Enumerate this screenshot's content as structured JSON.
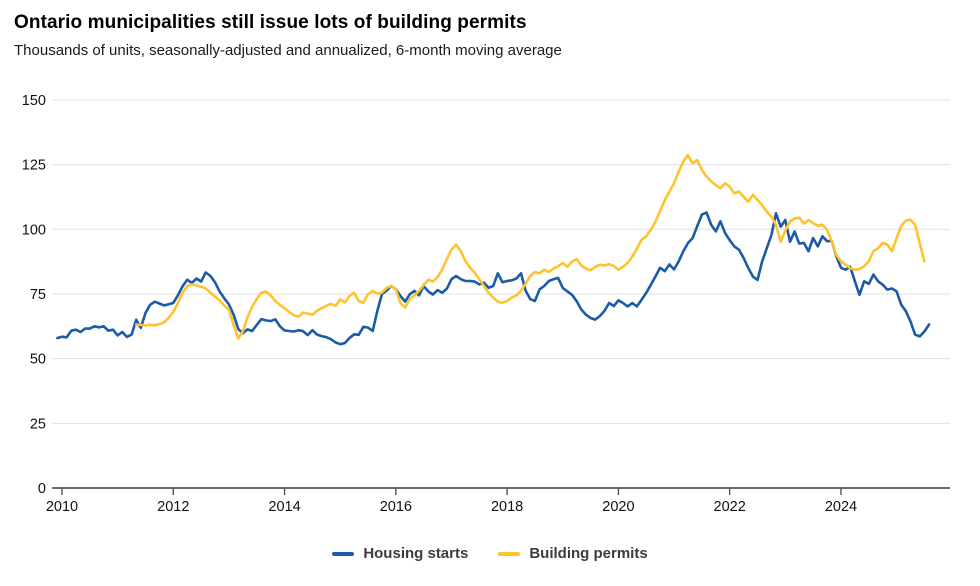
{
  "header": {
    "title": "Ontario municipalities still issue lots of building permits",
    "subtitle": "Thousands of units, seasonally-adjusted and annualized, 6-month moving average"
  },
  "legend": [
    {
      "label": "Housing starts",
      "color": "#1c5ba6"
    },
    {
      "label": "Building permits",
      "color": "#fdc42d"
    }
  ],
  "colors": {
    "housing_starts": "#1c5ba6",
    "building_permits": "#fdc42d",
    "gridline": "#e0e0e0",
    "axis": "#6b6b6b",
    "text": "#111111"
  },
  "chart_data": {
    "type": "line",
    "title": "Ontario municipalities still issue lots of building permits",
    "subtitle": "Thousands of units, seasonally-adjusted and annualized, 6-month moving average",
    "xlabel": "",
    "ylabel": "Thousands of units",
    "ylim": [
      0,
      150
    ],
    "yticks": [
      0,
      25,
      50,
      75,
      100,
      125,
      150
    ],
    "xticks": [
      2010,
      2012,
      2014,
      2016,
      2018,
      2020,
      2022,
      2024
    ],
    "x_range": [
      2009.9,
      2025.75
    ],
    "grid": "horizontal",
    "legend_position": "bottom",
    "x_unit": "year, monthly points (value index i = start_year + i/12)",
    "series": [
      {
        "name": "Housing starts",
        "color": "#1c5ba6",
        "start_year": 2009.9167,
        "points_per_year": 12,
        "values": [
          58.0,
          58.5,
          58.2,
          60.8,
          61.2,
          60.3,
          61.6,
          61.6,
          62.5,
          62.1,
          62.5,
          60.8,
          61.2,
          59.0,
          60.3,
          58.4,
          59.3,
          65.0,
          61.9,
          67.7,
          70.8,
          72.0,
          71.3,
          70.6,
          71.0,
          71.5,
          74.5,
          78.0,
          80.5,
          79.3,
          81.0,
          79.8,
          83.3,
          82.0,
          79.5,
          76.0,
          73.3,
          71.0,
          67.0,
          61.5,
          59.8,
          61.3,
          60.7,
          63.0,
          65.3,
          64.8,
          64.5,
          65.2,
          62.5,
          60.9,
          60.7,
          60.5,
          61.0,
          60.6,
          59.1,
          61.0,
          59.3,
          58.7,
          58.3,
          57.5,
          56.3,
          55.6,
          56.0,
          58.0,
          59.4,
          59.2,
          62.3,
          62.0,
          60.7,
          68.4,
          74.9,
          76.3,
          78.1,
          76.8,
          74.2,
          72.0,
          74.9,
          76.2,
          74.5,
          78.0,
          76.0,
          74.8,
          76.5,
          75.5,
          77.0,
          80.7,
          82.0,
          80.7,
          80.0,
          80.0,
          79.8,
          78.7,
          79.4,
          77.4,
          78.1,
          83.0,
          79.5,
          80.0,
          80.3,
          81.0,
          83.0,
          76.2,
          73.0,
          72.3,
          76.8,
          78.1,
          80.0,
          80.7,
          81.2,
          77.3,
          76.0,
          74.7,
          72.2,
          69.0,
          67.0,
          65.7,
          65.1,
          66.5,
          68.5,
          71.5,
          70.3,
          72.5,
          71.5,
          70.2,
          71.5,
          70.2,
          72.8,
          75.4,
          78.6,
          81.8,
          85.1,
          83.8,
          86.4,
          84.5,
          87.6,
          91.5,
          94.7,
          96.6,
          101.2,
          105.7,
          106.5,
          101.8,
          99.2,
          103.1,
          98.6,
          95.8,
          93.4,
          92.1,
          88.9,
          85.1,
          81.7,
          80.4,
          87.5,
          92.7,
          97.8,
          106.2,
          101.0,
          103.6,
          95.2,
          99.1,
          94.5,
          94.7,
          91.5,
          96.6,
          93.4,
          97.3,
          95.4,
          95.5,
          89.6,
          85.1,
          84.4,
          85.5,
          79.9,
          74.7,
          79.9,
          78.9,
          82.5,
          79.9,
          78.6,
          76.7,
          77.1,
          76.0,
          70.9,
          68.3,
          64.4,
          59.3,
          58.6,
          60.5,
          63.2
        ]
      },
      {
        "name": "Building permits",
        "color": "#fdc42d",
        "start_year": 2011.3333,
        "points_per_year": 12,
        "values": [
          63.2,
          63.0,
          62.8,
          63.1,
          62.9,
          63.3,
          64.0,
          65.8,
          68.0,
          71.5,
          75.5,
          78.0,
          78.7,
          78.3,
          77.8,
          77.2,
          75.5,
          74.0,
          72.5,
          70.5,
          69.0,
          63.0,
          57.8,
          60.5,
          66.0,
          70.0,
          73.0,
          75.5,
          75.9,
          74.5,
          72.3,
          70.8,
          69.5,
          68.0,
          66.8,
          66.2,
          67.8,
          67.4,
          67.0,
          68.5,
          69.5,
          70.4,
          71.2,
          70.4,
          72.9,
          71.7,
          74.2,
          75.5,
          72.3,
          71.6,
          74.9,
          76.2,
          75.1,
          75.5,
          77.4,
          78.1,
          76.8,
          71.5,
          69.8,
          72.9,
          74.5,
          76.2,
          78.5,
          80.5,
          79.8,
          81.5,
          84.5,
          88.5,
          92.1,
          94.1,
          91.5,
          87.8,
          85.2,
          83.2,
          80.7,
          78.1,
          75.5,
          73.6,
          72.0,
          71.6,
          72.3,
          73.6,
          74.5,
          76.2,
          79.0,
          82.0,
          83.5,
          83.0,
          84.4,
          83.5,
          84.8,
          85.7,
          87.0,
          85.5,
          87.5,
          88.5,
          86.0,
          84.8,
          84.2,
          85.5,
          86.3,
          86.0,
          86.5,
          85.8,
          84.4,
          85.5,
          87.0,
          89.5,
          92.5,
          96.0,
          97.3,
          99.8,
          103.0,
          107.0,
          111.3,
          114.5,
          117.8,
          122.3,
          126.2,
          128.7,
          125.5,
          126.8,
          122.9,
          120.4,
          118.6,
          117.1,
          115.8,
          117.8,
          116.5,
          113.9,
          114.6,
          112.6,
          110.7,
          113.3,
          111.4,
          109.4,
          106.8,
          104.9,
          101.7,
          95.2,
          99.5,
          103.0,
          104.2,
          104.5,
          102.2,
          103.6,
          102.4,
          101.4,
          101.8,
          99.9,
          95.4,
          90.2,
          87.6,
          86.3,
          85.0,
          84.4,
          84.6,
          85.7,
          87.6,
          91.5,
          92.7,
          94.7,
          94.1,
          91.5,
          96.6,
          101.2,
          103.4,
          103.7,
          101.7,
          94.5,
          87.6
        ]
      }
    ]
  }
}
